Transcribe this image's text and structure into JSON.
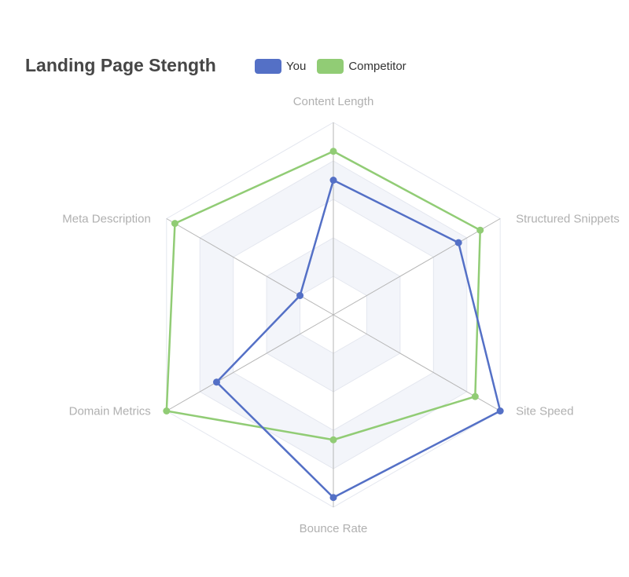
{
  "chart_data": {
    "type": "radar",
    "title": "Landing Page Stength",
    "legend_position": "top",
    "indicators": [
      "Content Length",
      "Structured Snippets",
      "Site Speed",
      "Bounce Rate",
      "Domain Metrics",
      "Meta Description"
    ],
    "max": 100,
    "split_number": 5,
    "series": [
      {
        "name": "You",
        "color": "#5470c6",
        "values": [
          70,
          75,
          100,
          95,
          70,
          20
        ]
      },
      {
        "name": "Competitor",
        "color": "#91cc75",
        "values": [
          85,
          88,
          85,
          65,
          100,
          95
        ]
      }
    ]
  }
}
